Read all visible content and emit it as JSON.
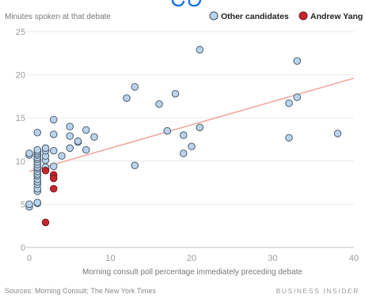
{
  "colors": {
    "other_fill": "#b9d3ec",
    "other_stroke": "#3d4f60",
    "yang_fill": "#c4262e",
    "yang_stroke": "#6e1217",
    "trend": "#f2a8a0",
    "title_blue": "#1a73e8"
  },
  "chart_data": {
    "type": "scatter",
    "ylabel": "Minutes spoken at that debate",
    "xlabel": "Morning consult poll percentage immediately preceding debate",
    "xlim": [
      0,
      40
    ],
    "ylim": [
      0,
      25
    ],
    "x_ticks": [
      0,
      10,
      20,
      30,
      40
    ],
    "y_ticks": [
      0,
      5,
      10,
      15,
      20,
      25
    ],
    "grid": "horizontal",
    "legend_position": "top-right",
    "series": [
      {
        "name": "Other candidates",
        "points": [
          [
            0,
            4.7
          ],
          [
            0,
            5.0
          ],
          [
            0,
            10.7
          ],
          [
            0,
            10.9
          ],
          [
            1,
            5.1
          ],
          [
            1,
            5.2
          ],
          [
            1,
            6.5
          ],
          [
            1,
            6.8
          ],
          [
            1,
            7.3
          ],
          [
            1,
            7.6
          ],
          [
            1,
            7.9
          ],
          [
            1,
            8.3
          ],
          [
            1,
            8.5
          ],
          [
            1,
            8.8
          ],
          [
            1,
            9.1
          ],
          [
            1,
            9.3
          ],
          [
            1,
            9.6
          ],
          [
            1,
            9.9
          ],
          [
            1,
            10.2
          ],
          [
            1,
            10.4
          ],
          [
            1,
            10.7
          ],
          [
            1,
            10.9
          ],
          [
            1,
            11.1
          ],
          [
            1,
            11.3
          ],
          [
            1,
            13.3
          ],
          [
            2,
            9.1
          ],
          [
            2,
            9.3
          ],
          [
            2,
            10.1
          ],
          [
            2,
            10.6
          ],
          [
            2,
            11.2
          ],
          [
            2,
            11.5
          ],
          [
            3,
            9.4
          ],
          [
            3,
            11.2
          ],
          [
            3,
            13.1
          ],
          [
            3,
            14.8
          ],
          [
            4,
            10.6
          ],
          [
            5,
            11.5
          ],
          [
            5,
            12.9
          ],
          [
            5,
            14.0
          ],
          [
            6,
            12.2
          ],
          [
            6,
            12.3
          ],
          [
            7,
            11.3
          ],
          [
            7,
            13.6
          ],
          [
            8,
            12.8
          ],
          [
            12,
            17.3
          ],
          [
            13,
            18.6
          ],
          [
            13,
            9.5
          ],
          [
            16,
            16.6
          ],
          [
            17,
            13.5
          ],
          [
            18,
            17.8
          ],
          [
            19,
            13.0
          ],
          [
            19,
            10.9
          ],
          [
            20,
            11.7
          ],
          [
            21,
            22.9
          ],
          [
            21,
            13.9
          ],
          [
            32,
            16.7
          ],
          [
            32,
            12.7
          ],
          [
            33,
            21.6
          ],
          [
            33,
            17.4
          ],
          [
            38,
            13.2
          ]
        ]
      },
      {
        "name": "Andrew Yang",
        "points": [
          [
            2,
            8.9
          ],
          [
            3,
            8.4
          ],
          [
            3,
            8.0
          ],
          [
            3,
            6.8
          ],
          [
            2,
            2.9
          ]
        ]
      }
    ],
    "trendline": {
      "x": [
        0,
        40
      ],
      "y": [
        8.8,
        19.6
      ]
    },
    "source": "Sources: Morning Consult; The New York Times",
    "brand": "BUSINESS INSIDER"
  }
}
